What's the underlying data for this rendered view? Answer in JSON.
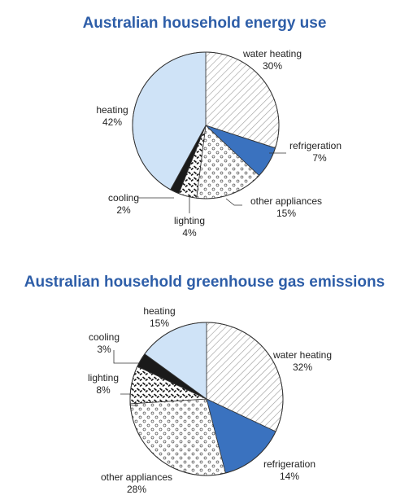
{
  "chart_data": [
    {
      "type": "pie",
      "title": "Australian household energy use",
      "categories": [
        "water heating",
        "refrigeration",
        "other appliances",
        "lighting",
        "cooling",
        "heating"
      ],
      "values": [
        30,
        7,
        15,
        4,
        2,
        42
      ],
      "value_labels": [
        "30%",
        "7%",
        "15%",
        "4%",
        "2%",
        "42%"
      ]
    },
    {
      "type": "pie",
      "title": "Australian household greenhouse gas emissions",
      "categories": [
        "water heating",
        "refrigeration",
        "other appliances",
        "lighting",
        "cooling",
        "heating"
      ],
      "values": [
        32,
        14,
        28,
        8,
        3,
        15
      ],
      "value_labels": [
        "32%",
        "14%",
        "28%",
        "8%",
        "3%",
        "15%"
      ]
    }
  ],
  "colors": {
    "title": "#2e5ea8",
    "heating": "#cfe3f7",
    "refrigeration": "#3a72bf",
    "cooling": "#1a1a1a"
  }
}
